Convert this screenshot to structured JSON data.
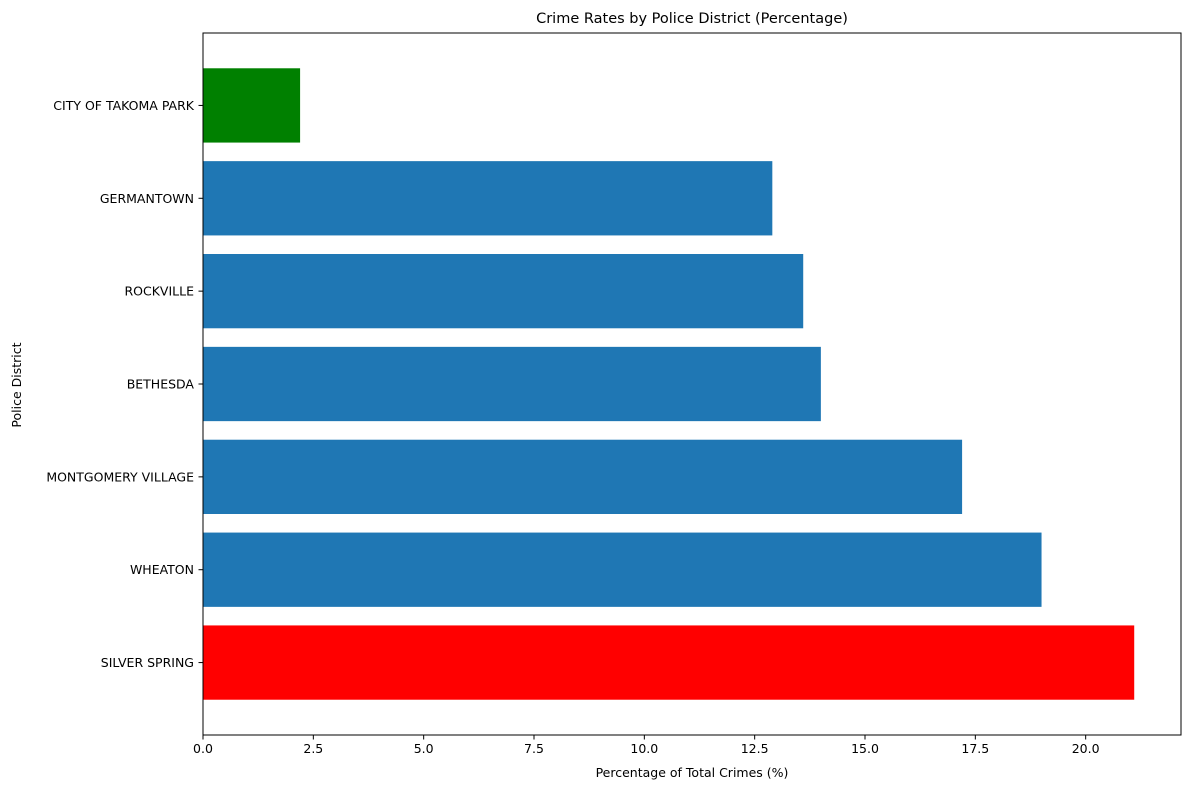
{
  "chart_data": {
    "type": "bar",
    "orientation": "horizontal",
    "title": "Crime Rates by Police District (Percentage)",
    "xlabel": "Percentage of Total Crimes (%)",
    "ylabel": "Police District",
    "xlim": [
      0,
      22.16
    ],
    "xticks": [
      0.0,
      2.5,
      5.0,
      7.5,
      10.0,
      12.5,
      15.0,
      17.5,
      20.0
    ],
    "xtick_labels": [
      "0.0",
      "2.5",
      "5.0",
      "7.5",
      "10.0",
      "12.5",
      "15.0",
      "17.5",
      "20.0"
    ],
    "grid": false,
    "categories": [
      "SILVER SPRING",
      "WHEATON",
      "MONTGOMERY VILLAGE",
      "BETHESDA",
      "ROCKVILLE",
      "GERMANTOWN",
      "CITY OF TAKOMA PARK"
    ],
    "values": [
      21.1,
      19.0,
      17.2,
      14.0,
      13.6,
      12.9,
      2.2
    ],
    "colors": [
      "#ff0000",
      "#1f77b4",
      "#1f77b4",
      "#1f77b4",
      "#1f77b4",
      "#1f77b4",
      "#008000"
    ]
  }
}
